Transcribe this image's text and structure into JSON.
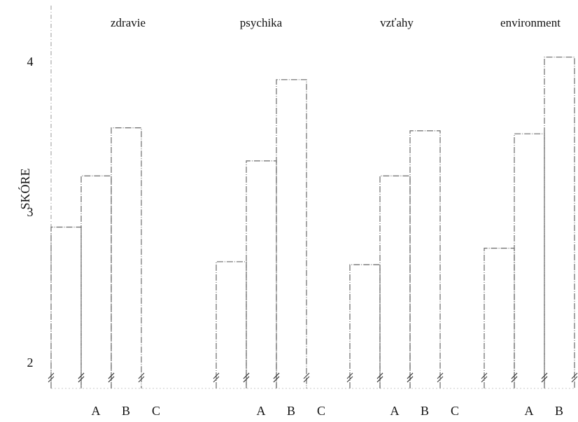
{
  "chart_data": {
    "type": "bar",
    "ylabel": "SKÓRE",
    "ylim": [
      1.8,
      4.4
    ],
    "yticks": [
      2,
      3,
      4
    ],
    "ytick_labels": [
      "2",
      "3",
      "4"
    ],
    "grid": false,
    "legend": "none",
    "categories": [
      "A",
      "B",
      "C"
    ],
    "groups": [
      {
        "title": "zdravie",
        "values": [
          2.9,
          3.24,
          3.56
        ]
      },
      {
        "title": "psychika",
        "values": [
          2.67,
          3.34,
          3.88
        ]
      },
      {
        "title": "vzťahy",
        "values": [
          2.65,
          3.24,
          3.54
        ]
      },
      {
        "title": "environment",
        "values": [
          2.76,
          3.52,
          4.03
        ]
      }
    ],
    "colors": {
      "bar_stroke": "#6a6a6a",
      "text": "#111111"
    }
  }
}
